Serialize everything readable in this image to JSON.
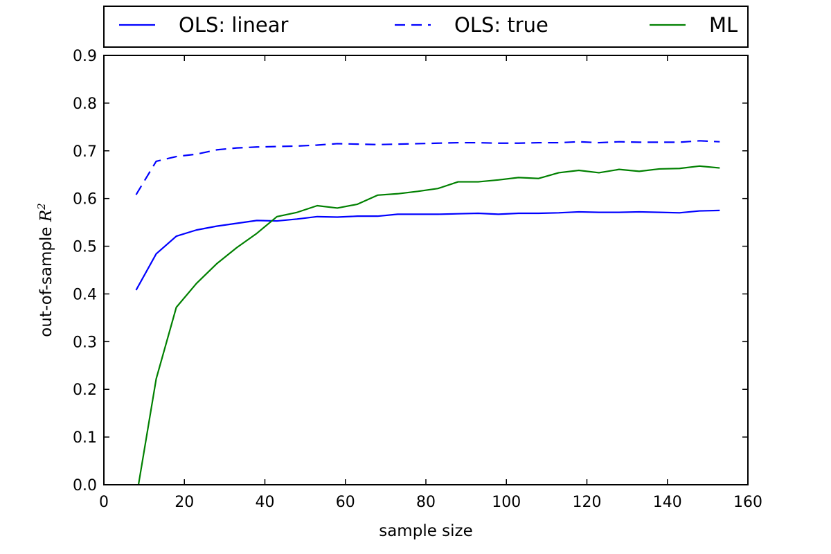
{
  "chart_data": {
    "type": "line",
    "title": "",
    "xlabel": "sample size",
    "ylabel": "out-of-sample R²",
    "ylabel_base": "out-of-sample ",
    "ylabel_var": "R",
    "ylabel_sup": "2",
    "xlim": [
      0,
      160
    ],
    "ylim": [
      0.0,
      0.9
    ],
    "xticks": [
      0,
      20,
      40,
      60,
      80,
      100,
      120,
      140,
      160
    ],
    "yticks": [
      0.0,
      0.1,
      0.2,
      0.3,
      0.4,
      0.5,
      0.6,
      0.7,
      0.8,
      0.9
    ],
    "xtick_labels": [
      "0",
      "20",
      "40",
      "60",
      "80",
      "100",
      "120",
      "140",
      "160"
    ],
    "ytick_labels": [
      "0.0",
      "0.1",
      "0.2",
      "0.3",
      "0.4",
      "0.5",
      "0.6",
      "0.7",
      "0.8",
      "0.9"
    ],
    "grid": false,
    "legend_position": "top, above plot, 3 columns",
    "series": [
      {
        "name": "OLS: linear",
        "color": "#0000ff",
        "style": "solid",
        "x": [
          8,
          13,
          18,
          23,
          28,
          33,
          38,
          43,
          48,
          53,
          58,
          63,
          68,
          73,
          78,
          83,
          88,
          93,
          98,
          103,
          108,
          113,
          118,
          123,
          128,
          133,
          138,
          143,
          148,
          153
        ],
        "y": [
          0.408,
          0.484,
          0.521,
          0.534,
          0.542,
          0.548,
          0.554,
          0.553,
          0.557,
          0.562,
          0.561,
          0.563,
          0.563,
          0.567,
          0.567,
          0.567,
          0.568,
          0.569,
          0.567,
          0.569,
          0.569,
          0.57,
          0.572,
          0.571,
          0.571,
          0.572,
          0.571,
          0.57,
          0.574,
          0.575
        ]
      },
      {
        "name": "OLS: true",
        "color": "#0000ff",
        "style": "dashed",
        "x": [
          8,
          13,
          18,
          23,
          28,
          33,
          38,
          43,
          48,
          53,
          58,
          63,
          68,
          73,
          78,
          83,
          88,
          93,
          98,
          103,
          108,
          113,
          118,
          123,
          128,
          133,
          138,
          143,
          148,
          153
        ],
        "y": [
          0.608,
          0.678,
          0.688,
          0.693,
          0.702,
          0.706,
          0.708,
          0.709,
          0.71,
          0.712,
          0.715,
          0.714,
          0.713,
          0.714,
          0.715,
          0.716,
          0.717,
          0.717,
          0.716,
          0.716,
          0.717,
          0.717,
          0.719,
          0.717,
          0.719,
          0.718,
          0.718,
          0.718,
          0.721,
          0.719
        ]
      },
      {
        "name": "ML",
        "color": "#008000",
        "style": "solid",
        "x": [
          8,
          13,
          18,
          23,
          28,
          33,
          38,
          43,
          48,
          53,
          58,
          63,
          68,
          73,
          78,
          83,
          88,
          93,
          98,
          103,
          108,
          113,
          118,
          123,
          128,
          133,
          138,
          143,
          148,
          153
        ],
        "y": [
          -0.03,
          0.222,
          0.372,
          0.422,
          0.463,
          0.497,
          0.527,
          0.562,
          0.571,
          0.585,
          0.58,
          0.588,
          0.607,
          0.61,
          0.615,
          0.621,
          0.635,
          0.635,
          0.639,
          0.644,
          0.642,
          0.654,
          0.659,
          0.654,
          0.661,
          0.657,
          0.662,
          0.663,
          0.668,
          0.664
        ]
      }
    ]
  }
}
